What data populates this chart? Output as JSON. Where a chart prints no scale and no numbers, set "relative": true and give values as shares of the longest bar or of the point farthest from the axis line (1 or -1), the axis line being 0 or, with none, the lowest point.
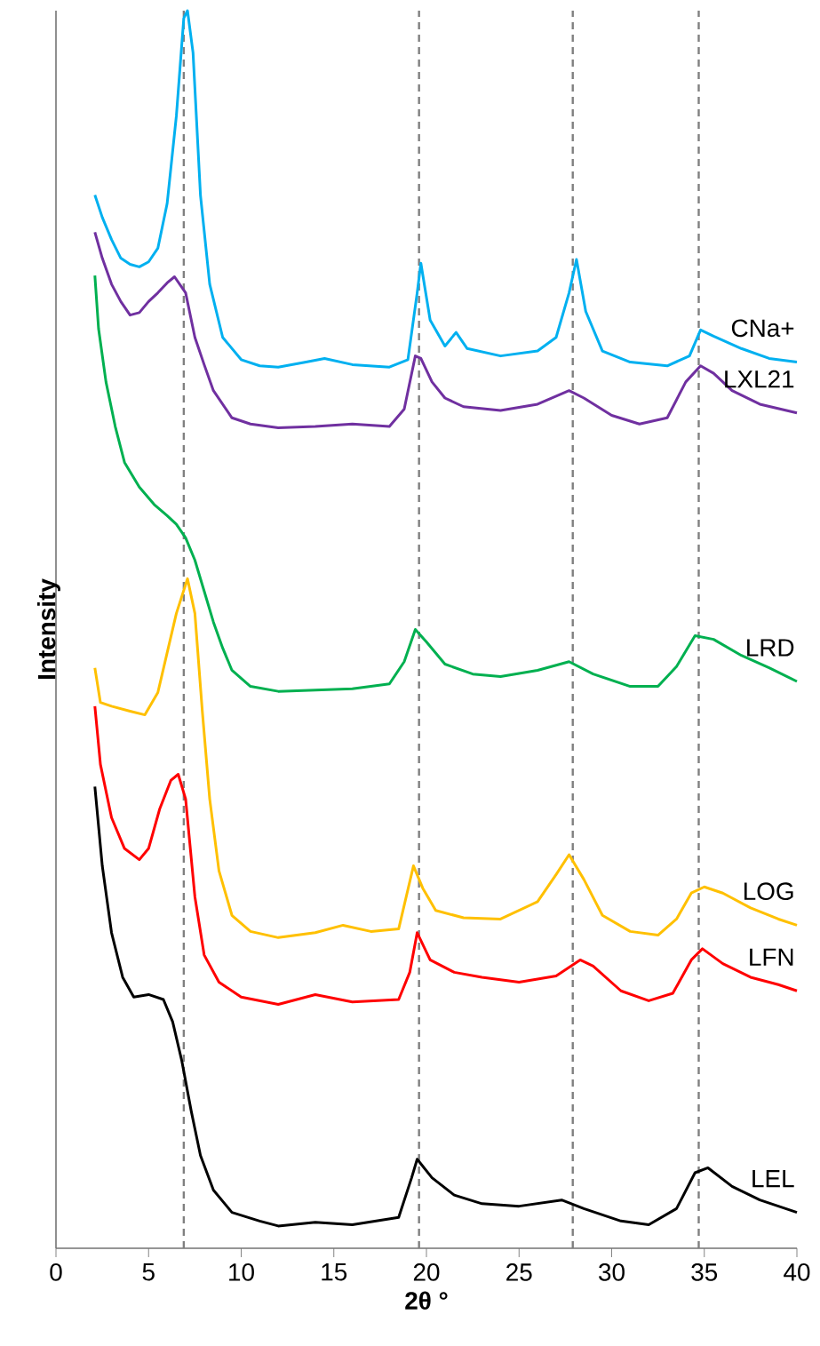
{
  "chart_data": {
    "type": "line",
    "relative": true,
    "xlabel": "2θ °",
    "ylabel": "Intensity",
    "xlim": [
      0,
      40
    ],
    "xticks": [
      0,
      5,
      10,
      15,
      20,
      25,
      30,
      35,
      40
    ],
    "grid": false,
    "legend": false,
    "marker": "none",
    "line_style": "solid",
    "ref_lines": [
      {
        "axis": "x",
        "value": 6.9,
        "color": "#808080",
        "line_style": "dashed"
      },
      {
        "axis": "x",
        "value": 19.6,
        "color": "#808080",
        "line_style": "dashed"
      },
      {
        "axis": "x",
        "value": 27.9,
        "color": "#808080",
        "line_style": "dashed"
      },
      {
        "axis": "x",
        "value": 34.7,
        "color": "#808080",
        "line_style": "dashed"
      }
    ],
    "series": [
      {
        "name": "CNa+",
        "color": "#00b0f0",
        "x": [
          2.1,
          2.5,
          3,
          3.5,
          4,
          4.5,
          5,
          5.5,
          6,
          6.5,
          6.9,
          7.1,
          7.4,
          7.8,
          8.3,
          9,
          10,
          11,
          12,
          13.5,
          14.5,
          16,
          18,
          19,
          19.5,
          19.7,
          20.2,
          21,
          21.6,
          22.2,
          24,
          26,
          27,
          27.7,
          28.1,
          28.6,
          29.5,
          31,
          33,
          34.2,
          34.8,
          35.5,
          37,
          38.5,
          40
        ],
        "values": [
          0.851,
          0.833,
          0.815,
          0.8,
          0.795,
          0.793,
          0.797,
          0.808,
          0.844,
          0.915,
          0.994,
          1.0,
          0.966,
          0.851,
          0.779,
          0.736,
          0.718,
          0.713,
          0.712,
          0.716,
          0.719,
          0.714,
          0.712,
          0.718,
          0.772,
          0.796,
          0.75,
          0.729,
          0.74,
          0.727,
          0.721,
          0.725,
          0.736,
          0.772,
          0.799,
          0.757,
          0.725,
          0.716,
          0.713,
          0.721,
          0.742,
          0.737,
          0.727,
          0.719,
          0.716
        ]
      },
      {
        "name": "LXL21",
        "color": "#7030a0",
        "x": [
          2.1,
          2.5,
          3,
          3.5,
          4,
          4.5,
          5,
          5.5,
          6,
          6.4,
          7,
          7.5,
          8,
          8.5,
          9.5,
          10.5,
          12,
          14,
          16,
          18,
          18.8,
          19.4,
          19.7,
          20.3,
          21,
          22,
          24,
          26,
          27.7,
          28.5,
          30,
          31.5,
          33,
          34,
          34.8,
          35.5,
          36.5,
          38,
          40
        ],
        "values": [
          0.821,
          0.8,
          0.779,
          0.765,
          0.754,
          0.756,
          0.765,
          0.772,
          0.78,
          0.785,
          0.772,
          0.736,
          0.714,
          0.693,
          0.671,
          0.666,
          0.663,
          0.664,
          0.666,
          0.664,
          0.678,
          0.721,
          0.719,
          0.7,
          0.687,
          0.68,
          0.677,
          0.682,
          0.693,
          0.687,
          0.673,
          0.666,
          0.671,
          0.7,
          0.713,
          0.707,
          0.693,
          0.682,
          0.675
        ]
      },
      {
        "name": "LRD",
        "color": "#00b050",
        "x": [
          2.1,
          2.3,
          2.7,
          3.2,
          3.7,
          4.5,
          5.3,
          6,
          6.5,
          7,
          7.5,
          8,
          8.5,
          9,
          9.5,
          10.5,
          12,
          14,
          16,
          18,
          18.8,
          19.4,
          20,
          21,
          22.5,
          24,
          26,
          27.7,
          29,
          31,
          32.5,
          33.5,
          34.5,
          35.5,
          37,
          38.5,
          40
        ],
        "values": [
          0.786,
          0.743,
          0.7,
          0.664,
          0.635,
          0.615,
          0.601,
          0.592,
          0.585,
          0.574,
          0.556,
          0.531,
          0.506,
          0.485,
          0.467,
          0.454,
          0.45,
          0.451,
          0.452,
          0.456,
          0.474,
          0.5,
          0.49,
          0.472,
          0.464,
          0.462,
          0.467,
          0.474,
          0.464,
          0.454,
          0.454,
          0.47,
          0.495,
          0.492,
          0.479,
          0.469,
          0.458
        ]
      },
      {
        "name": "LOG",
        "color": "#ffc000",
        "x": [
          2.1,
          2.4,
          3,
          4,
          4.8,
          5.5,
          6,
          6.5,
          7.1,
          7.5,
          7.9,
          8.3,
          8.8,
          9.5,
          10.5,
          12,
          14,
          15.5,
          17,
          18.5,
          19.3,
          19.8,
          20.5,
          22,
          24,
          26,
          27,
          27.7,
          28.5,
          29.5,
          31,
          32.5,
          33.5,
          34.3,
          35,
          36,
          37.5,
          39,
          40
        ],
        "values": [
          0.469,
          0.441,
          0.438,
          0.434,
          0.431,
          0.449,
          0.481,
          0.513,
          0.541,
          0.513,
          0.434,
          0.363,
          0.305,
          0.269,
          0.256,
          0.251,
          0.255,
          0.261,
          0.256,
          0.258,
          0.309,
          0.291,
          0.273,
          0.267,
          0.266,
          0.28,
          0.302,
          0.318,
          0.298,
          0.269,
          0.256,
          0.253,
          0.266,
          0.287,
          0.292,
          0.287,
          0.275,
          0.266,
          0.261
        ]
      },
      {
        "name": "LFN",
        "color": "#ff0000",
        "x": [
          2.1,
          2.4,
          3,
          3.7,
          4.5,
          5,
          5.6,
          6.2,
          6.6,
          7,
          7.5,
          8,
          8.8,
          10,
          12,
          14,
          16,
          18.5,
          19.1,
          19.5,
          20.2,
          21.5,
          23,
          25,
          27,
          28.3,
          29,
          30.5,
          32,
          33.3,
          34.3,
          34.9,
          36,
          37.5,
          39,
          40
        ],
        "values": [
          0.438,
          0.391,
          0.348,
          0.323,
          0.314,
          0.323,
          0.355,
          0.378,
          0.383,
          0.363,
          0.284,
          0.237,
          0.215,
          0.203,
          0.197,
          0.205,
          0.199,
          0.201,
          0.223,
          0.255,
          0.233,
          0.223,
          0.219,
          0.215,
          0.22,
          0.233,
          0.228,
          0.208,
          0.2,
          0.206,
          0.233,
          0.242,
          0.23,
          0.219,
          0.213,
          0.208
        ]
      },
      {
        "name": "LEL",
        "color": "#000000",
        "x": [
          2.1,
          2.5,
          3,
          3.6,
          4.2,
          5,
          5.8,
          6.3,
          6.8,
          7.3,
          7.8,
          8.5,
          9.5,
          11,
          12,
          14,
          16,
          18.5,
          19.2,
          19.5,
          20.3,
          21.5,
          23,
          25,
          27.3,
          28.5,
          30.5,
          32,
          33.5,
          34.5,
          35.2,
          36.5,
          38,
          40
        ],
        "values": [
          0.373,
          0.309,
          0.255,
          0.219,
          0.203,
          0.205,
          0.201,
          0.183,
          0.151,
          0.111,
          0.075,
          0.047,
          0.029,
          0.022,
          0.018,
          0.021,
          0.019,
          0.025,
          0.057,
          0.072,
          0.057,
          0.043,
          0.036,
          0.034,
          0.039,
          0.032,
          0.022,
          0.019,
          0.032,
          0.061,
          0.065,
          0.05,
          0.039,
          0.029
        ]
      }
    ]
  }
}
